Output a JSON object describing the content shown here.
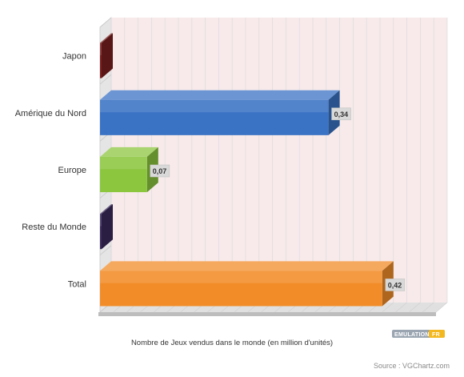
{
  "chart_data": {
    "type": "bar",
    "orientation": "horizontal",
    "style": "3d",
    "categories": [
      "Japon",
      "Amérique du Nord",
      "Europe",
      "Reste du Monde",
      "Total"
    ],
    "values": [
      0,
      0.34,
      0.07,
      0,
      0.42
    ],
    "data_labels": [
      "",
      "0,34",
      "0,07",
      "",
      "0,42"
    ],
    "colors": [
      "#7a1f1f",
      "#3b73c4",
      "#8cc63f",
      "#3b2a5c",
      "#f28c28"
    ],
    "title": "",
    "xlabel": "Nombre de Jeux vendus dans le monde (en million d'unités)",
    "ylabel": "",
    "xlim": [
      0,
      0.5
    ],
    "grid": true,
    "legend": "none"
  },
  "source": "Source : VGChartz.com",
  "logo": {
    "text_left": "EMULATION",
    "text_right": "FR",
    "colors": [
      "#9aa5b1",
      "#f3b81f"
    ]
  }
}
